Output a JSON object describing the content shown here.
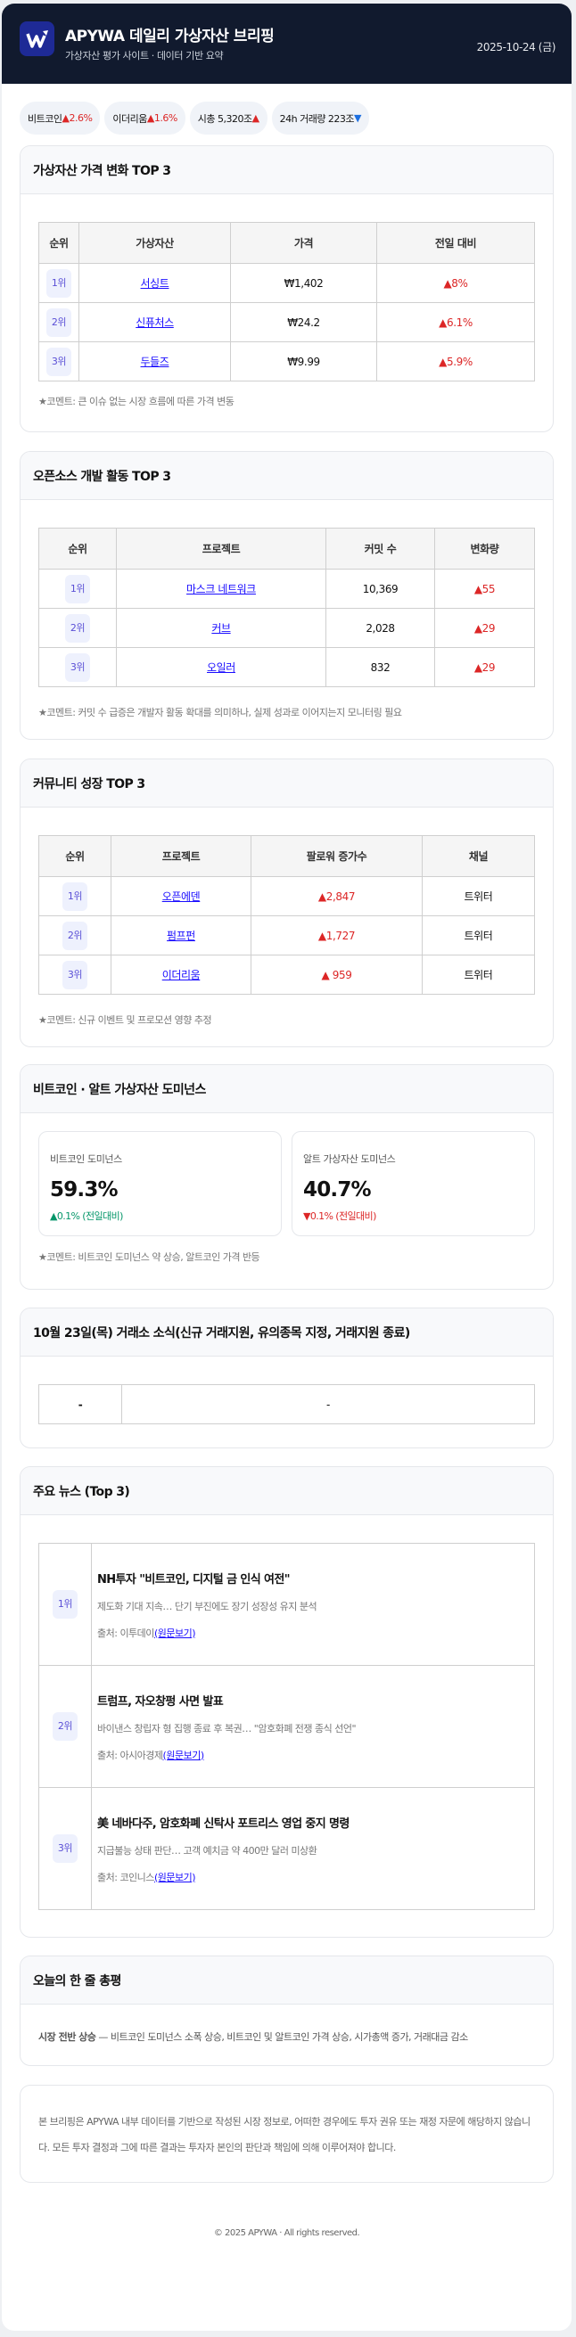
{
  "header": {
    "title": "APYWA 데일리 가상자산 브리핑",
    "subtitle": "가상자산 평가 사이트 · 데이터 기반 요약",
    "date": "2025-10-24 (금)",
    "logo_letter": "W"
  },
  "colors": {
    "header_bg": "#111a2e",
    "up": "#dc2626",
    "down": "#1d6fe0",
    "green": "#059669",
    "link": "#1a0dff"
  },
  "pills": [
    {
      "label": "비트코인",
      "value": "▲2.6%",
      "dir": "up"
    },
    {
      "label": "이더리움",
      "value": "▲1.6%",
      "dir": "up"
    },
    {
      "label": "시총 5,320조",
      "value": "▲",
      "dir": "up"
    },
    {
      "label": "24h 거래량 223조",
      "value": "▼",
      "dir": "down"
    }
  ],
  "price": {
    "title": "가상자산 가격 변화 TOP 3",
    "headers": [
      "순위",
      "가상자산",
      "가격",
      "전일 대비"
    ],
    "rows": [
      {
        "rank": "1위",
        "name": "서싱트",
        "price": "₩1,402",
        "change": "▲8%"
      },
      {
        "rank": "2위",
        "name": "신퓨처스",
        "price": "₩24.2",
        "change": "▲6.1%"
      },
      {
        "rank": "3위",
        "name": "두들즈",
        "price": "₩9.99",
        "change": "▲5.9%"
      }
    ],
    "comment": "★코멘트: 큰 이슈 없는 시장 흐름에 따른 가격 변동"
  },
  "oss": {
    "title": "오픈소스 개발 활동 TOP 3",
    "headers": [
      "순위",
      "프로젝트",
      "커밋 수",
      "변화량"
    ],
    "rows": [
      {
        "rank": "1위",
        "name": "마스크 네트워크",
        "commits": "10,369",
        "change": "▲55"
      },
      {
        "rank": "2위",
        "name": "커브",
        "commits": "2,028",
        "change": "▲29"
      },
      {
        "rank": "3위",
        "name": "오일러",
        "commits": "832",
        "change": "▲29"
      }
    ],
    "comment": "★코멘트: 커밋 수 급증은 개발자 활동 확대를 의미하나, 실제 성과로 이어지는지 모니터링 필요"
  },
  "community": {
    "title": "커뮤니티 성장 TOP 3",
    "headers": [
      "순위",
      "프로젝트",
      "팔로워 증가수",
      "채널"
    ],
    "rows": [
      {
        "rank": "1위",
        "name": "오픈에덴",
        "followers": "▲2,847",
        "channel": "트위터"
      },
      {
        "rank": "2위",
        "name": "펌프펀",
        "followers": "▲1,727",
        "channel": "트위터"
      },
      {
        "rank": "3위",
        "name": "이더리움",
        "followers": "▲ 959",
        "channel": "트위터"
      }
    ],
    "comment": "★코멘트: 신규 이벤트 및 프로모션 영향 추정"
  },
  "dominance": {
    "title": "비트코인 · 알트 가상자산 도미넌스",
    "btc": {
      "label": "비트코인 도미넌스",
      "value": "59.3%",
      "change": "▲0.1% (전일대비)"
    },
    "alt": {
      "label": "알트 가상자산 도미넌스",
      "value": "40.7%",
      "change": "▼0.1% (전일대비)"
    },
    "comment": "★코멘트: 비트코인 도미넌스 약 상승, 알트코인 가격 반등"
  },
  "exchange": {
    "title": "10월 23일(목) 거래소 소식(신규 거래지원, 유의종목 지정, 거래지원 종료)",
    "cells": [
      "-",
      "-"
    ]
  },
  "news": {
    "title": "주요 뉴스 (Top 3)",
    "items": [
      {
        "rank": "1위",
        "title": "NH투자 \"비트코인, 디지털 금 인식 여전\"",
        "desc": "제도화 기대 지속… 단기 부진에도 장기 성장성 유지 분석",
        "source": "출처: 이투데이",
        "link": "(원문보기)"
      },
      {
        "rank": "2위",
        "title": "트럼프, 자오창펑 사면 발표",
        "desc": "바이낸스 창립자 형 집행 종료 후 복권… \"암호화폐 전쟁 종식 선언\"",
        "source": "출처: 아시아경제",
        "link": "(원문보기)"
      },
      {
        "rank": "3위",
        "title": "美 네바다주, 암호화폐 신탁사 포트리스 영업 중지 명령",
        "desc": "지급불능 상태 판단… 고객 예치금 약 400만 달러 미상환",
        "source": "출처: 코인니스",
        "link": "(원문보기)"
      }
    ]
  },
  "summary": {
    "title": "오늘의 한 줄 총평",
    "lead": "시장 전반 상승",
    "text": " — 비트코인 도미넌스 소폭 상승, 비트코인 및 알트코인 가격 상승, 시가총액 증가, 거래대금 감소"
  },
  "disclaimer": "본 브리핑은 APYWA 내부 데이터를 기반으로 작성된 시장 정보로, 어떠한 경우에도 투자 권유 또는 재정 자문에 해당하지 않습니다. 모든 투자 결정과 그에 따른 결과는 투자자 본인의 판단과 책임에 의해 이루어져야 합니다.",
  "footer": "© 2025 APYWA · All rights reserved."
}
